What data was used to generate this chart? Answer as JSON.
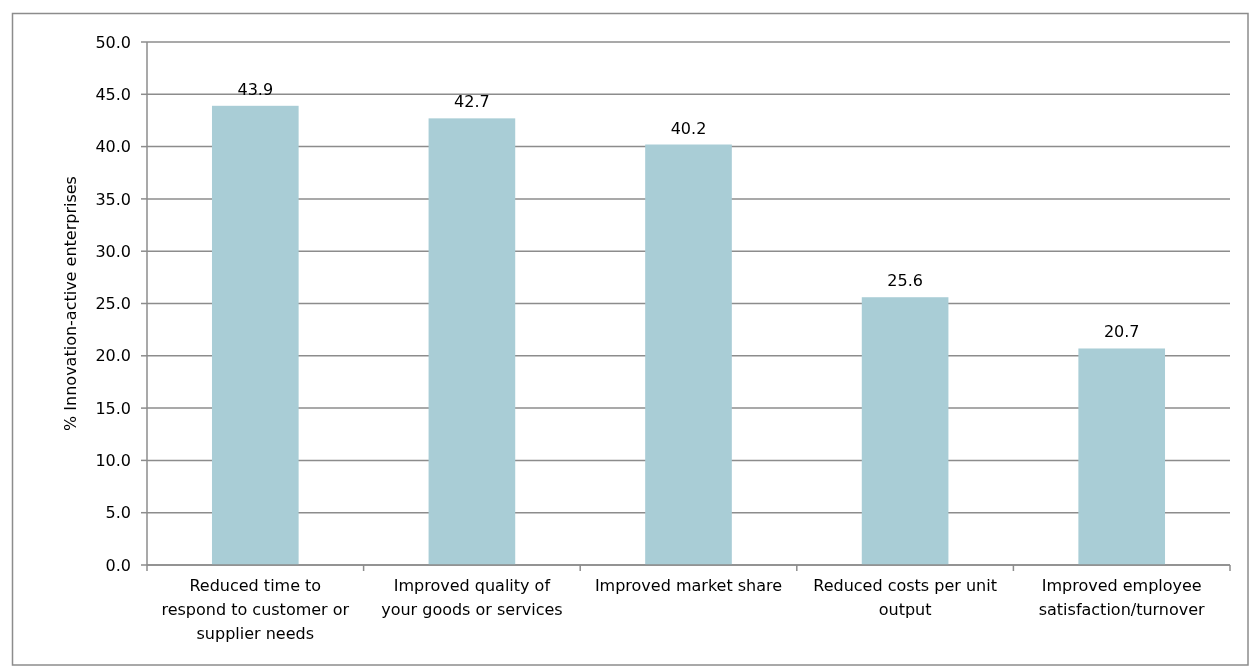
{
  "chart_data": {
    "type": "bar",
    "ylabel": "% Innovation-active enterprises",
    "categories": [
      "Reduced time to respond to customer or supplier needs",
      "Improved quality of your goods or services",
      "Improved market share",
      "Reduced costs per unit output",
      "Improved employee satisfaction/turnover"
    ],
    "values": [
      43.9,
      42.7,
      40.2,
      25.6,
      20.7
    ],
    "color": "#a9cdd6",
    "ylim": [
      0,
      50
    ],
    "yticks": [
      {
        "value": 0,
        "label": "0.0"
      },
      {
        "value": 5,
        "label": "5.0"
      },
      {
        "value": 10,
        "label": "10.0"
      },
      {
        "value": 15,
        "label": "15.0"
      },
      {
        "value": 20,
        "label": "20.0"
      },
      {
        "value": 25,
        "label": "25.0"
      },
      {
        "value": 30,
        "label": "30.0"
      },
      {
        "value": 35,
        "label": "35.0"
      },
      {
        "value": 40,
        "label": "40.0"
      },
      {
        "value": 45,
        "label": "45.0"
      },
      {
        "value": 50,
        "label": "50.0"
      }
    ],
    "grid": "y",
    "data_labels": true
  }
}
